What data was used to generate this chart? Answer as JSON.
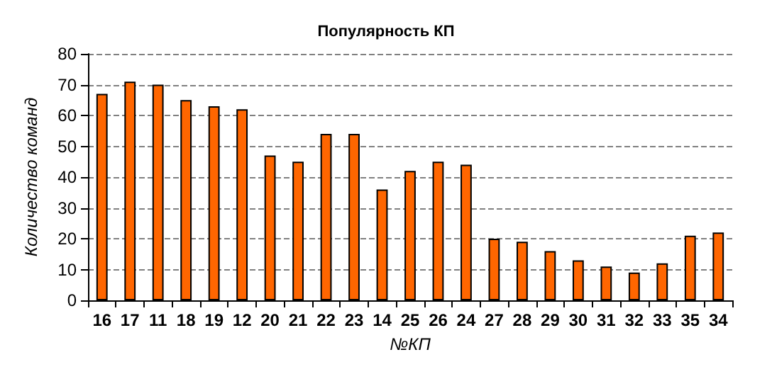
{
  "chart_data": {
    "type": "bar",
    "title": "Популярность КП",
    "xlabel": "№КП",
    "ylabel": "Количество команд",
    "categories": [
      "16",
      "17",
      "11",
      "18",
      "19",
      "12",
      "20",
      "21",
      "22",
      "23",
      "14",
      "25",
      "26",
      "24",
      "27",
      "28",
      "29",
      "30",
      "31",
      "32",
      "33",
      "35",
      "34"
    ],
    "values": [
      67,
      71,
      70,
      65,
      63,
      62,
      47,
      45,
      54,
      54,
      36,
      42,
      45,
      44,
      20,
      19,
      16,
      13,
      11,
      9,
      12,
      21,
      22
    ],
    "color": "#ff6600",
    "ylim": [
      0,
      80
    ],
    "yticks": [
      0,
      10,
      20,
      30,
      40,
      50,
      60,
      70,
      80
    ],
    "grid": "y"
  }
}
